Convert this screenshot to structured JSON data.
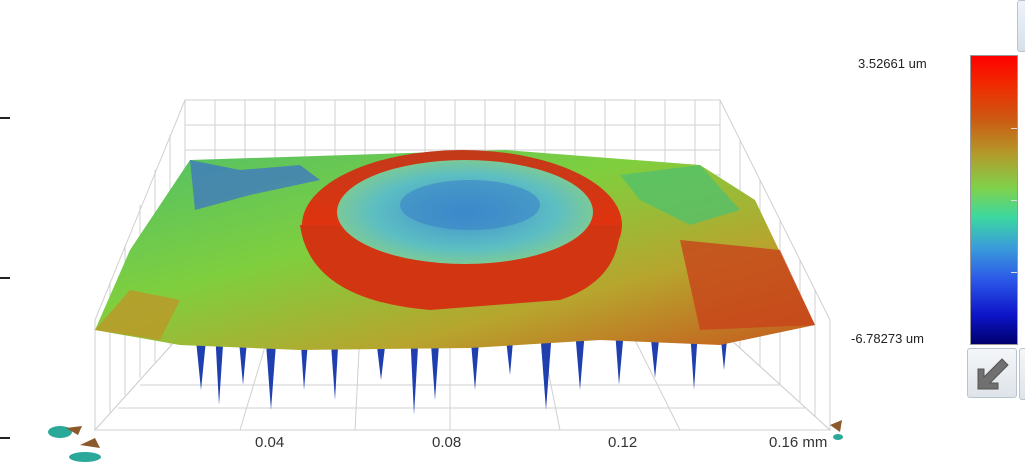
{
  "axis": {
    "ticks": [
      "0.04",
      "0.08",
      "0.12",
      "0.16 mm"
    ]
  },
  "color_scale": {
    "max_label": "3.52661 um",
    "min_label": "-6.78273 um",
    "colors": [
      "#ff0000",
      "#cc5a12",
      "#7fd24d",
      "#3a9fd8",
      "#0d14c8",
      "#00006e"
    ]
  },
  "toolbar": {
    "reset_view_icon": "arrow-down-left-icon"
  }
}
